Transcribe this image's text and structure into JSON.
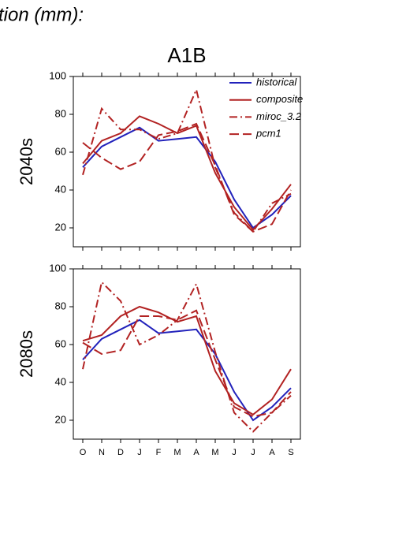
{
  "heading": "tion (mm):",
  "scenario": "A1B",
  "chart_data": [
    {
      "type": "line",
      "ylabel": "2040s",
      "ylim": [
        10,
        100
      ],
      "yticks": [
        20,
        40,
        60,
        80,
        100
      ],
      "legend": "upper right",
      "series": [
        {
          "name": "historical",
          "color": "#2222bb",
          "style": "solid",
          "values": [
            52,
            63,
            68,
            73,
            66,
            67,
            68,
            55,
            35,
            20,
            27,
            37
          ]
        },
        {
          "name": "composite",
          "color": "#b22222",
          "style": "solid",
          "values": [
            54,
            66,
            70,
            79,
            75,
            70,
            74,
            49,
            31,
            19,
            30,
            43
          ]
        },
        {
          "name": "miroc_3.2",
          "color": "#b22222",
          "style": "dashdot",
          "values": [
            48,
            83,
            72,
            72,
            67,
            70,
            93,
            52,
            28,
            18,
            33,
            38
          ]
        },
        {
          "name": "pcm1",
          "color": "#b22222",
          "style": "dashed",
          "values": [
            65,
            57,
            51,
            55,
            69,
            71,
            75,
            53,
            27,
            18,
            22,
            40
          ]
        }
      ]
    },
    {
      "type": "line",
      "ylabel": "2080s",
      "ylim": [
        10,
        100
      ],
      "yticks": [
        20,
        40,
        60,
        80,
        100
      ],
      "categories": [
        "O",
        "N",
        "D",
        "J",
        "F",
        "M",
        "A",
        "M",
        "J",
        "J",
        "A",
        "S"
      ],
      "series": [
        {
          "color": "#2222bb",
          "style": "solid",
          "values": [
            52,
            63,
            68,
            73,
            66,
            67,
            68,
            55,
            35,
            20,
            27,
            37
          ]
        },
        {
          "color": "#b22222",
          "style": "solid",
          "values": [
            62,
            65,
            75,
            80,
            77,
            72,
            75,
            46,
            29,
            23,
            31,
            47
          ]
        },
        {
          "color": "#b22222",
          "style": "dashdot",
          "values": [
            47,
            93,
            83,
            60,
            65,
            73,
            92,
            56,
            24,
            14,
            24,
            33
          ]
        },
        {
          "color": "#b22222",
          "style": "dashed",
          "values": [
            61,
            55,
            57,
            75,
            75,
            73,
            78,
            52,
            27,
            22,
            24,
            35
          ]
        }
      ]
    }
  ]
}
